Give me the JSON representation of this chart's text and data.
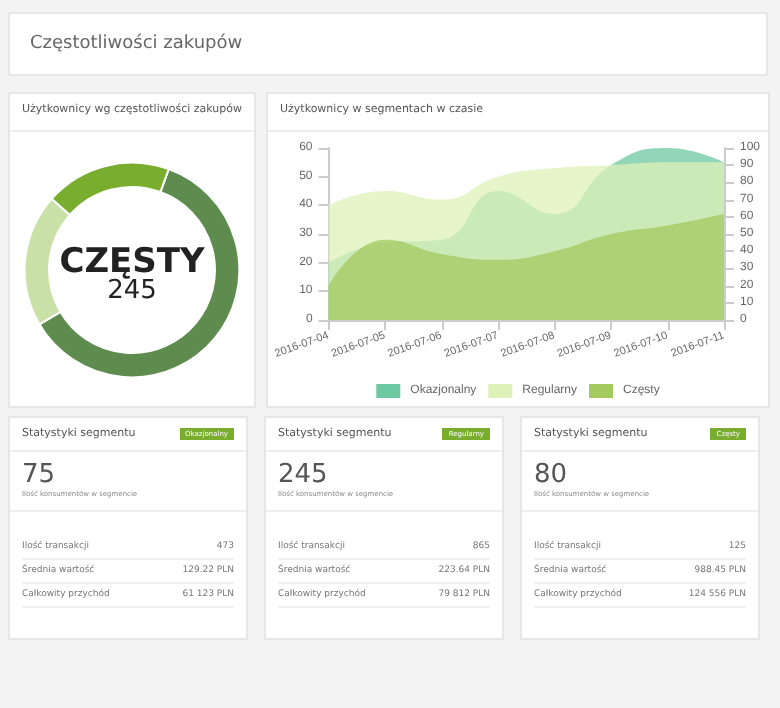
{
  "chart_data": [
    {
      "type": "other",
      "title": "Częstotliwości zakupów"
    },
    {
      "type": "donut",
      "title": "Użytkownicy wg częstotliwości zakupów",
      "categories": [
        null,
        null,
        null
      ],
      "values": [
        61,
        20,
        19
      ],
      "colors": [
        "#5e8c4e",
        "#c9e0a6",
        "#79ad2e"
      ],
      "annotations": [
        "CZĘSTY",
        "245"
      ],
      "legend": false
    },
    {
      "type": "area",
      "title": "Użytkownicy w segmentach w czasie",
      "categories": [
        "2016-07-04",
        "2016-07-05",
        "2016-07-06",
        "2016-07-07",
        "2016-07-08",
        "2016-07-09",
        "2016-07-10",
        "2016-07-11"
      ],
      "series": [
        {
          "name": "Okazjonalny",
          "color": "#6cc8a0",
          "values": [
            20,
            27,
            28,
            45,
            37,
            54,
            60,
            55
          ]
        },
        {
          "name": "Regularny",
          "color": "#ddf2b8",
          "values": [
            40,
            45,
            42,
            50,
            53,
            54,
            55,
            55
          ]
        },
        {
          "name": "Częsty",
          "color": "#a3c95f",
          "values": [
            12,
            28,
            23,
            21,
            24,
            30,
            33,
            37
          ]
        }
      ],
      "ylim": [
        0,
        60
      ],
      "yticks": [
        0,
        10,
        20,
        30,
        40,
        50,
        60
      ],
      "y2lim": [
        0,
        100
      ],
      "y2ticks": [
        0,
        10,
        20,
        30,
        40,
        50,
        60,
        70,
        80,
        90,
        100
      ],
      "legend": "bottom",
      "grid": false
    },
    {
      "type": "other",
      "title": "Statystyki segmentu",
      "annotations": [
        "Okazjonalny",
        "75",
        "Ilość konsumentów w segmencie",
        "Ilość transakcji",
        "473",
        "Średnia wartość",
        "129.22 PLN",
        "Całkowity przychód",
        "61 123 PLN"
      ]
    },
    {
      "type": "other",
      "title": "Statystyki segmentu",
      "annotations": [
        "Regularny",
        "245",
        "Ilość konsumentów w segmencie",
        "Ilość transakcji",
        "865",
        "Średnia wartość",
        "223.64 PLN",
        "Całkowity przychód",
        "79 812 PLN"
      ]
    },
    {
      "type": "other",
      "title": "Statystyki segmentu",
      "annotations": [
        "Częsty",
        "80",
        "Ilość konsumentów w segmencie",
        "Ilość transakcji",
        "125",
        "Średnia wartość",
        "988.45 PLN",
        "Całkowity przychód",
        "124 556 PLN"
      ]
    }
  ]
}
